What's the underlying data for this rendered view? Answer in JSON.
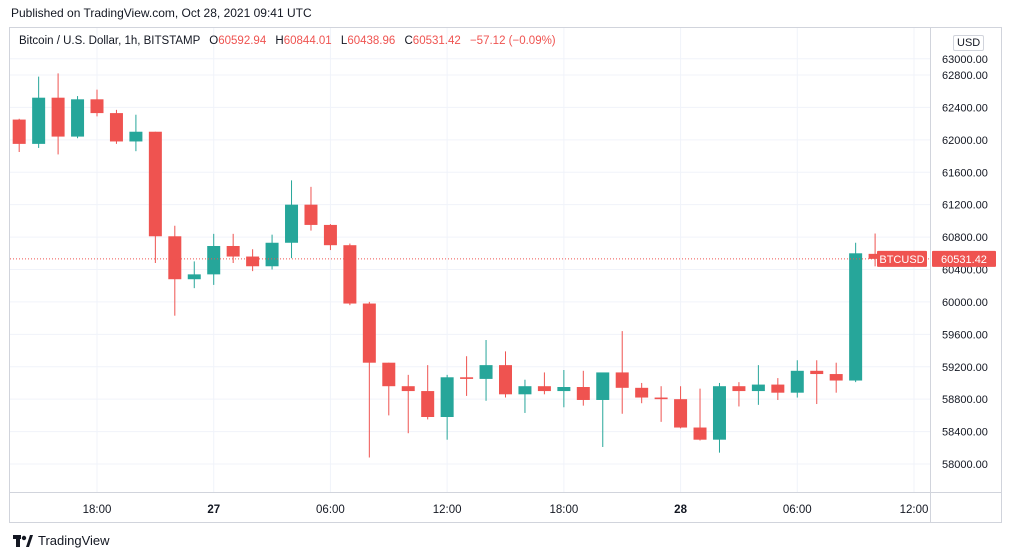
{
  "header": {
    "published": "Published on TradingView.com, Oct 28, 2021 09:41 UTC"
  },
  "legend": {
    "symbol": "Bitcoin / U.S. Dollar, 1h, BITSTAMP",
    "open_label": "O",
    "open": "60592.94",
    "high_label": "H",
    "high": "60844.01",
    "low_label": "L",
    "low": "60438.96",
    "close_label": "C",
    "close": "60531.42",
    "change": "−57.12 (−0.09%)"
  },
  "currency_label": "USD",
  "price_tag": {
    "label": "BTCUSD",
    "value": "60531.42"
  },
  "brand": {
    "name": "TradingView",
    "logo_icon": "tradingview-logo-icon"
  },
  "colors": {
    "up": "#26a69a",
    "down": "#ef5350",
    "grid": "#f0f3fa",
    "axis_text": "#131722"
  },
  "chart_data": {
    "type": "candlestick",
    "title": "Bitcoin / U.S. Dollar, 1h, BITSTAMP",
    "ylim": [
      57700,
      63300
    ],
    "y_ticks": [
      "58000.00",
      "58400.00",
      "58800.00",
      "59200.00",
      "59600.00",
      "60000.00",
      "60400.00",
      "60800.00",
      "61200.00",
      "61600.00",
      "62000.00",
      "62400.00",
      "62800.00",
      "63000.00"
    ],
    "x_ticks": [
      {
        "label": "18:00",
        "index": 4
      },
      {
        "label": "27",
        "index": 10
      },
      {
        "label": "06:00",
        "index": 16
      },
      {
        "label": "12:00",
        "index": 22
      },
      {
        "label": "18:00",
        "index": 28
      },
      {
        "label": "28",
        "index": 34
      },
      {
        "label": "06:00",
        "index": 40
      },
      {
        "label": "12:00",
        "index": 46
      }
    ],
    "last_price": 60531.42,
    "candles": [
      {
        "o": 62250,
        "h": 62260,
        "l": 61850,
        "c": 61950
      },
      {
        "o": 61950,
        "h": 62780,
        "l": 61900,
        "c": 62520
      },
      {
        "o": 62520,
        "h": 62820,
        "l": 61820,
        "c": 62040
      },
      {
        "o": 62040,
        "h": 62540,
        "l": 62020,
        "c": 62500
      },
      {
        "o": 62500,
        "h": 62620,
        "l": 62290,
        "c": 62330
      },
      {
        "o": 62330,
        "h": 62370,
        "l": 61950,
        "c": 61980
      },
      {
        "o": 61980,
        "h": 62310,
        "l": 61860,
        "c": 62100
      },
      {
        "o": 62100,
        "h": 62100,
        "l": 60480,
        "c": 60810
      },
      {
        "o": 60810,
        "h": 60940,
        "l": 59830,
        "c": 60280
      },
      {
        "o": 60280,
        "h": 60500,
        "l": 60170,
        "c": 60340
      },
      {
        "o": 60340,
        "h": 60840,
        "l": 60210,
        "c": 60690
      },
      {
        "o": 60690,
        "h": 60840,
        "l": 60480,
        "c": 60560
      },
      {
        "o": 60560,
        "h": 60650,
        "l": 60380,
        "c": 60440
      },
      {
        "o": 60440,
        "h": 60830,
        "l": 60400,
        "c": 60730
      },
      {
        "o": 60730,
        "h": 61500,
        "l": 60540,
        "c": 61200
      },
      {
        "o": 61200,
        "h": 61420,
        "l": 60880,
        "c": 60950
      },
      {
        "o": 60950,
        "h": 60960,
        "l": 60640,
        "c": 60700
      },
      {
        "o": 60700,
        "h": 60720,
        "l": 59960,
        "c": 59980
      },
      {
        "o": 59980,
        "h": 60000,
        "l": 58080,
        "c": 59250
      },
      {
        "o": 59250,
        "h": 59250,
        "l": 58600,
        "c": 58960
      },
      {
        "o": 58960,
        "h": 59100,
        "l": 58380,
        "c": 58900
      },
      {
        "o": 58900,
        "h": 59220,
        "l": 58550,
        "c": 58580
      },
      {
        "o": 58580,
        "h": 59100,
        "l": 58300,
        "c": 59070
      },
      {
        "o": 59070,
        "h": 59330,
        "l": 58840,
        "c": 59050
      },
      {
        "o": 59050,
        "h": 59530,
        "l": 58780,
        "c": 59220
      },
      {
        "o": 59220,
        "h": 59390,
        "l": 58820,
        "c": 58860
      },
      {
        "o": 58860,
        "h": 59040,
        "l": 58630,
        "c": 58960
      },
      {
        "o": 58960,
        "h": 59130,
        "l": 58860,
        "c": 58900
      },
      {
        "o": 58900,
        "h": 59160,
        "l": 58700,
        "c": 58950
      },
      {
        "o": 58950,
        "h": 59150,
        "l": 58720,
        "c": 58790
      },
      {
        "o": 58790,
        "h": 59110,
        "l": 58210,
        "c": 59130
      },
      {
        "o": 59130,
        "h": 59640,
        "l": 58620,
        "c": 58940
      },
      {
        "o": 58940,
        "h": 59000,
        "l": 58750,
        "c": 58820
      },
      {
        "o": 58820,
        "h": 58960,
        "l": 58520,
        "c": 58800
      },
      {
        "o": 58800,
        "h": 58960,
        "l": 58440,
        "c": 58450
      },
      {
        "o": 58450,
        "h": 58930,
        "l": 58290,
        "c": 58300
      },
      {
        "o": 58300,
        "h": 59000,
        "l": 58140,
        "c": 58960
      },
      {
        "o": 58960,
        "h": 59010,
        "l": 58710,
        "c": 58900
      },
      {
        "o": 58900,
        "h": 59220,
        "l": 58730,
        "c": 58980
      },
      {
        "o": 58980,
        "h": 59060,
        "l": 58790,
        "c": 58880
      },
      {
        "o": 58880,
        "h": 59280,
        "l": 58820,
        "c": 59150
      },
      {
        "o": 59150,
        "h": 59280,
        "l": 58740,
        "c": 59110
      },
      {
        "o": 59110,
        "h": 59250,
        "l": 58880,
        "c": 59030
      },
      {
        "o": 59030,
        "h": 60730,
        "l": 59010,
        "c": 60600
      },
      {
        "o": 60593,
        "h": 60844,
        "l": 60439,
        "c": 60531
      }
    ]
  }
}
